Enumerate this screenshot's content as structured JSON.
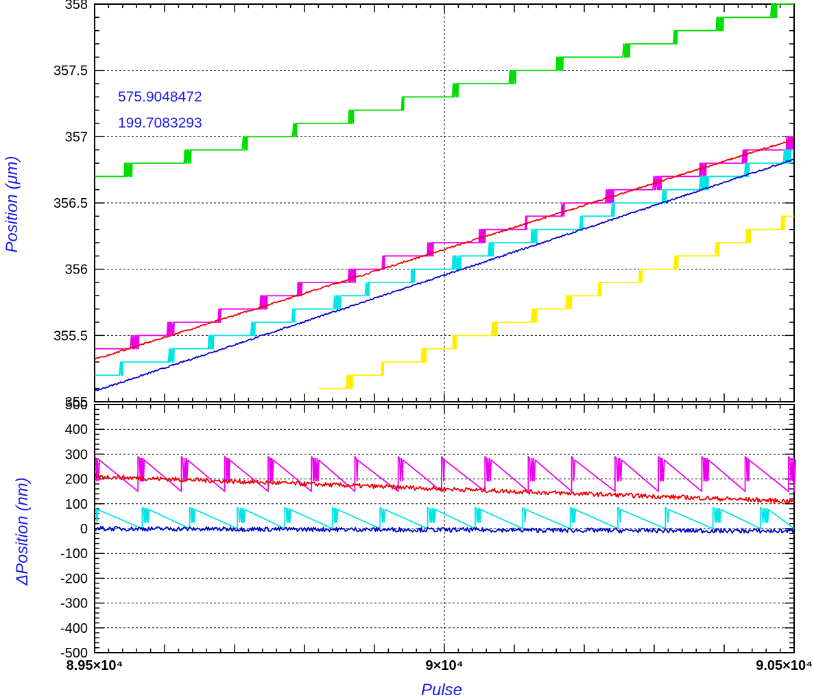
{
  "chart_data": [
    {
      "type": "line",
      "panel": "top",
      "ylabel": "Position (μm)",
      "ylim": [
        355.0,
        358.0
      ],
      "xlim": [
        89500,
        90500
      ],
      "y_ticks": [
        "358",
        "357.5",
        "357",
        "356.5",
        "356",
        "355.5",
        "355"
      ],
      "y_tick_values": [
        358,
        357.5,
        357,
        356.5,
        356,
        355.5,
        355
      ],
      "grid": true,
      "annotations": [
        "575.9048472",
        "199.7083293"
      ],
      "series": [
        {
          "color": "#00dd00",
          "style": "staircase",
          "x": [
            89500,
            90500
          ],
          "y": [
            356.7,
            358.0
          ],
          "step": 0.1
        },
        {
          "color": "#ee00ee",
          "style": "staircase",
          "x": [
            89500,
            90500
          ],
          "y": [
            355.4,
            357.0
          ],
          "step": 0.1
        },
        {
          "color": "#00e5e5",
          "style": "staircase",
          "x": [
            89500,
            90500
          ],
          "y": [
            355.2,
            356.9
          ],
          "step": 0.1
        },
        {
          "color": "#ffee00",
          "style": "staircase",
          "x": [
            89820,
            90500
          ],
          "y": [
            355.1,
            356.4
          ],
          "step": 0.1
        },
        {
          "color": "#ee0000",
          "style": "noisy-line",
          "x": [
            89500,
            90500
          ],
          "y": [
            355.32,
            356.98
          ]
        },
        {
          "color": "#0000cc",
          "style": "noisy-line",
          "x": [
            89500,
            90500
          ],
          "y": [
            355.08,
            356.83
          ]
        }
      ]
    },
    {
      "type": "line",
      "panel": "bottom",
      "ylabel": "ΔPosition (nm)",
      "xlabel": "Pulse",
      "ylim": [
        -500,
        500
      ],
      "xlim": [
        89500,
        90500
      ],
      "y_ticks": [
        "500",
        "400",
        "300",
        "200",
        "100",
        "0",
        "-100",
        "-200",
        "-300",
        "-400",
        "-500"
      ],
      "y_tick_values": [
        500,
        400,
        300,
        200,
        100,
        0,
        -100,
        -200,
        -300,
        -400,
        -500
      ],
      "x_ticks": [
        "8.95×10⁴",
        "9×10⁴",
        "9.05×10⁴"
      ],
      "x_tick_values": [
        89500,
        90000,
        90500
      ],
      "grid": true,
      "series": [
        {
          "color": "#ee00ee",
          "style": "sawtooth",
          "low": 150,
          "high": 290
        },
        {
          "color": "#ee0000",
          "style": "noisy-line",
          "x": [
            89500,
            90500
          ],
          "y": [
            210,
            110
          ]
        },
        {
          "color": "#00e5e5",
          "style": "sawtooth",
          "low": 0,
          "high": 85
        },
        {
          "color": "#0000cc",
          "style": "noisy-line",
          "x": [
            89500,
            90500
          ],
          "y": [
            0,
            -10
          ]
        }
      ]
    }
  ]
}
